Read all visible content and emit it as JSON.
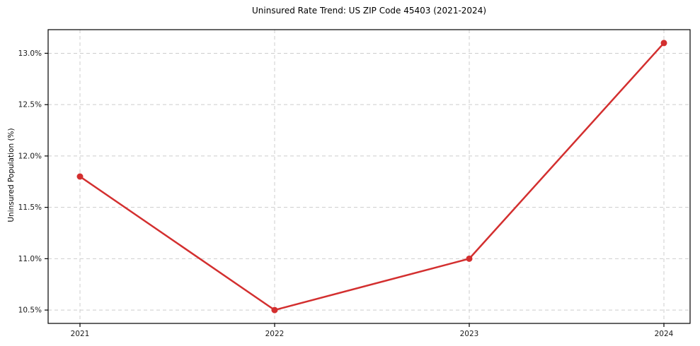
{
  "chart_data": {
    "type": "line",
    "title": "Uninsured Rate Trend: US ZIP Code 45403 (2021-2024)",
    "xlabel": "",
    "ylabel": "Uninsured Population (%)",
    "categories": [
      "2021",
      "2022",
      "2023",
      "2024"
    ],
    "series": [
      {
        "values": [
          11.8,
          10.5,
          11.0,
          13.1
        ]
      }
    ],
    "ytick_labels": [
      "10.5%",
      "11.0%",
      "11.5%",
      "12.0%",
      "12.5%",
      "13.0%"
    ],
    "ytick_values": [
      10.5,
      11.0,
      11.5,
      12.0,
      12.5,
      13.0
    ],
    "ylim": [
      10.37,
      13.23
    ],
    "grid": true,
    "grid_style": "dashed",
    "legend_position": "none",
    "colors": {
      "line": "#d32f2f",
      "marker": "#d32f2f",
      "grid": "#cdcdcd",
      "spine": "#000000",
      "tick_text": "#1a1a1a",
      "background": "#ffffff"
    }
  }
}
